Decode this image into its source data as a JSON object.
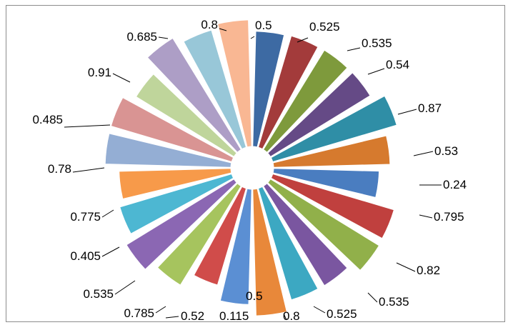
{
  "chart_data": {
    "type": "pie",
    "variant": "exploded-ring",
    "title": "",
    "legend": "none",
    "values": [
      0.5,
      0.525,
      0.535,
      0.54,
      0.87,
      0.53,
      0.24,
      0.795,
      0.82,
      0.535,
      0.525,
      0.8,
      0.5,
      0.115,
      0.52,
      0.785,
      0.535,
      0.405,
      0.775,
      0.78,
      0.485,
      0.91,
      0.685,
      0.8
    ],
    "labels": [
      "0.5",
      "0.525",
      "0.535",
      "0.54",
      "0.87",
      "0.53",
      "0.24",
      "0.795",
      "0.82",
      "0.535",
      "0.525",
      "0.8",
      "0.5",
      "0.115",
      "0.52",
      "0.785",
      "0.535",
      "0.405",
      "0.775",
      "0.78",
      "0.485",
      "0.91",
      "0.685",
      "0.8"
    ],
    "colors": [
      "#3d6aa3",
      "#a33b3b",
      "#7e9a3c",
      "#654a86",
      "#2f8ea6",
      "#d67a2e",
      "#4a7dc0",
      "#c0403e",
      "#91b04a",
      "#7a56a0",
      "#3ca8c2",
      "#e8883a",
      "#5b8fd3",
      "#d04c4a",
      "#a6c45e",
      "#8b67b3",
      "#4db7d2",
      "#f79a4a",
      "#94aed4",
      "#d99493",
      "#bfd59b",
      "#ad9ec6",
      "#98c7d8",
      "#f9b793"
    ]
  }
}
